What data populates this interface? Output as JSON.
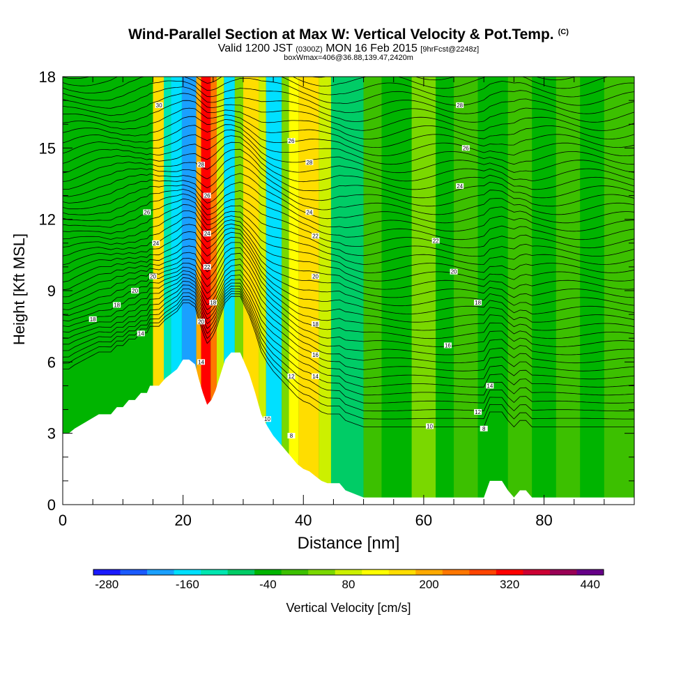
{
  "header": {
    "title": "Wind-Parallel Section at Max W: Vertical Velocity & Pot.Temp.",
    "copyright": "(C)",
    "valid": "Valid 1200 JST",
    "valid_z": "(0300Z)",
    "date": "MON 16 Feb 2015",
    "forecast": "[9hrFcst@2248z]",
    "box_info": "boxWmax=406@36.88,139.47,2420m"
  },
  "chart_data": {
    "type": "heatmap",
    "title": "Wind-Parallel Section at Max W: Vertical Velocity & Pot.Temp.",
    "xlabel": "Distance [nm]",
    "ylabel": "Height [Kft MSL]",
    "xlim": [
      0,
      95
    ],
    "ylim": [
      0,
      18
    ],
    "x_ticks": [
      0,
      20,
      40,
      60,
      80
    ],
    "y_ticks": [
      0,
      3,
      6,
      9,
      12,
      15,
      18
    ],
    "colorbar": {
      "label": "Vertical Velocity [cm/s]",
      "tick_values": [
        -280,
        -160,
        -40,
        80,
        200,
        320,
        440
      ],
      "colors": [
        "#1a1aff",
        "#1a5aff",
        "#1aa0ff",
        "#00e0ff",
        "#00e6b0",
        "#00cc66",
        "#00b400",
        "#3cc000",
        "#7ad800",
        "#ccf000",
        "#ffff00",
        "#ffdd00",
        "#ffaa00",
        "#ff7700",
        "#ff4400",
        "#ff0000",
        "#cc0033",
        "#990055",
        "#660088"
      ]
    },
    "vertical_velocity_bands": [
      {
        "x": 15.0,
        "w": 1.8,
        "color": "#ffdd00"
      },
      {
        "x": 16.8,
        "w": 1.2,
        "color": "#00e6b0"
      },
      {
        "x": 18.0,
        "w": 1.8,
        "color": "#00e0ff"
      },
      {
        "x": 19.8,
        "w": 2.4,
        "color": "#1aa0ff"
      },
      {
        "x": 22.2,
        "w": 0.8,
        "color": "#ffaa00"
      },
      {
        "x": 23.0,
        "w": 1.6,
        "color": "#ff0000"
      },
      {
        "x": 24.6,
        "w": 1.0,
        "color": "#ff7700"
      },
      {
        "x": 25.6,
        "w": 1.2,
        "color": "#ccf000"
      },
      {
        "x": 26.8,
        "w": 1.8,
        "color": "#00e0ff"
      },
      {
        "x": 28.6,
        "w": 1.4,
        "color": "#7ad800"
      },
      {
        "x": 30.0,
        "w": 2.6,
        "color": "#ffdd00"
      },
      {
        "x": 32.6,
        "w": 1.2,
        "color": "#ccf000"
      },
      {
        "x": 33.8,
        "w": 2.6,
        "color": "#00e0ff"
      },
      {
        "x": 36.4,
        "w": 1.2,
        "color": "#7ad800"
      },
      {
        "x": 37.6,
        "w": 1.6,
        "color": "#ffff00"
      },
      {
        "x": 39.2,
        "w": 3.4,
        "color": "#ffdd00"
      },
      {
        "x": 42.6,
        "w": 2.0,
        "color": "#ccf000"
      },
      {
        "x": 44.6,
        "w": 5.4,
        "color": "#00cc66"
      },
      {
        "x": 50.0,
        "w": 3.0,
        "color": "#3cc000"
      },
      {
        "x": 53.0,
        "w": 5.0,
        "color": "#00b400"
      },
      {
        "x": 58.0,
        "w": 4.0,
        "color": "#7ad800"
      },
      {
        "x": 62.0,
        "w": 3.0,
        "color": "#00b400"
      },
      {
        "x": 65.0,
        "w": 4.0,
        "color": "#3cc000"
      },
      {
        "x": 69.0,
        "w": 5.0,
        "color": "#00b400"
      },
      {
        "x": 74.0,
        "w": 4.0,
        "color": "#3cc000"
      },
      {
        "x": 78.0,
        "w": 4.0,
        "color": "#00b400"
      },
      {
        "x": 82.0,
        "w": 4.0,
        "color": "#3cc000"
      },
      {
        "x": 86.0,
        "w": 4.0,
        "color": "#00b400"
      },
      {
        "x": 90.0,
        "w": 5.0,
        "color": "#3cc000"
      }
    ],
    "terrain": [
      [
        0,
        3.0
      ],
      [
        1,
        3.0
      ],
      [
        2,
        3.2
      ],
      [
        4,
        3.5
      ],
      [
        6,
        3.8
      ],
      [
        8,
        3.8
      ],
      [
        9,
        4.1
      ],
      [
        10,
        4.1
      ],
      [
        11,
        4.4
      ],
      [
        12,
        4.4
      ],
      [
        13,
        4.7
      ],
      [
        14,
        4.7
      ],
      [
        14.5,
        5.0
      ],
      [
        15,
        5.0
      ],
      [
        16,
        5.0
      ],
      [
        17,
        5.3
      ],
      [
        18,
        5.5
      ],
      [
        19,
        5.7
      ],
      [
        20,
        6.1
      ],
      [
        21,
        6.1
      ],
      [
        22,
        5.9
      ],
      [
        22.6,
        5.3
      ],
      [
        23.3,
        4.7
      ],
      [
        24,
        4.2
      ],
      [
        24.7,
        4.4
      ],
      [
        25.4,
        4.8
      ],
      [
        26,
        5.3
      ],
      [
        27,
        6.1
      ],
      [
        28,
        6.4
      ],
      [
        29.5,
        6.4
      ],
      [
        30,
        6.1
      ],
      [
        31,
        5.5
      ],
      [
        32,
        4.7
      ],
      [
        33,
        3.8
      ],
      [
        34,
        3.3
      ],
      [
        35,
        2.9
      ],
      [
        36,
        2.6
      ],
      [
        37,
        2.3
      ],
      [
        38,
        2.0
      ],
      [
        39,
        1.7
      ],
      [
        40,
        1.5
      ],
      [
        41,
        1.4
      ],
      [
        42,
        1.2
      ],
      [
        43,
        1.0
      ],
      [
        44,
        0.9
      ],
      [
        46,
        0.9
      ],
      [
        47,
        0.6
      ],
      [
        50,
        0.3
      ],
      [
        70,
        0.3
      ],
      [
        71,
        1.0
      ],
      [
        72,
        1.0
      ],
      [
        73,
        1.0
      ],
      [
        74,
        0.6
      ],
      [
        75,
        0.3
      ],
      [
        76,
        0.6
      ],
      [
        77,
        0.6
      ],
      [
        78,
        0.3
      ],
      [
        95,
        0.3
      ]
    ],
    "theta_contour_labels": [
      {
        "x": 5,
        "y": 7.8,
        "text": "18"
      },
      {
        "x": 9,
        "y": 8.4,
        "text": "18"
      },
      {
        "x": 12,
        "y": 9.0,
        "text": "20"
      },
      {
        "x": 13,
        "y": 7.2,
        "text": "14"
      },
      {
        "x": 15,
        "y": 9.6,
        "text": "20"
      },
      {
        "x": 15.5,
        "y": 11.0,
        "text": "24"
      },
      {
        "x": 14,
        "y": 12.3,
        "text": "26"
      },
      {
        "x": 16,
        "y": 16.8,
        "text": "30"
      },
      {
        "x": 23,
        "y": 14.3,
        "text": "28"
      },
      {
        "x": 24,
        "y": 13.0,
        "text": "26"
      },
      {
        "x": 24,
        "y": 11.4,
        "text": "24"
      },
      {
        "x": 24,
        "y": 10.0,
        "text": "22"
      },
      {
        "x": 25,
        "y": 8.5,
        "text": "18"
      },
      {
        "x": 23,
        "y": 7.7,
        "text": "20"
      },
      {
        "x": 23,
        "y": 6.0,
        "text": "14"
      },
      {
        "x": 38,
        "y": 15.3,
        "text": "26"
      },
      {
        "x": 41,
        "y": 14.4,
        "text": "28"
      },
      {
        "x": 41,
        "y": 12.3,
        "text": "24"
      },
      {
        "x": 42,
        "y": 11.3,
        "text": "22"
      },
      {
        "x": 42,
        "y": 9.6,
        "text": "20"
      },
      {
        "x": 42,
        "y": 7.6,
        "text": "18"
      },
      {
        "x": 42,
        "y": 6.3,
        "text": "16"
      },
      {
        "x": 42,
        "y": 5.4,
        "text": "14"
      },
      {
        "x": 38,
        "y": 5.4,
        "text": "12"
      },
      {
        "x": 34,
        "y": 3.6,
        "text": "10"
      },
      {
        "x": 38,
        "y": 2.9,
        "text": "8"
      },
      {
        "x": 66,
        "y": 16.8,
        "text": "28"
      },
      {
        "x": 67,
        "y": 15.0,
        "text": "26"
      },
      {
        "x": 66,
        "y": 13.4,
        "text": "24"
      },
      {
        "x": 62,
        "y": 11.1,
        "text": "22"
      },
      {
        "x": 65,
        "y": 9.8,
        "text": "20"
      },
      {
        "x": 69,
        "y": 8.5,
        "text": "18"
      },
      {
        "x": 64,
        "y": 6.7,
        "text": "16"
      },
      {
        "x": 71,
        "y": 5.0,
        "text": "14"
      },
      {
        "x": 69,
        "y": 3.9,
        "text": "12"
      },
      {
        "x": 61,
        "y": 3.3,
        "text": "10"
      },
      {
        "x": 70,
        "y": 3.2,
        "text": "8"
      }
    ]
  }
}
